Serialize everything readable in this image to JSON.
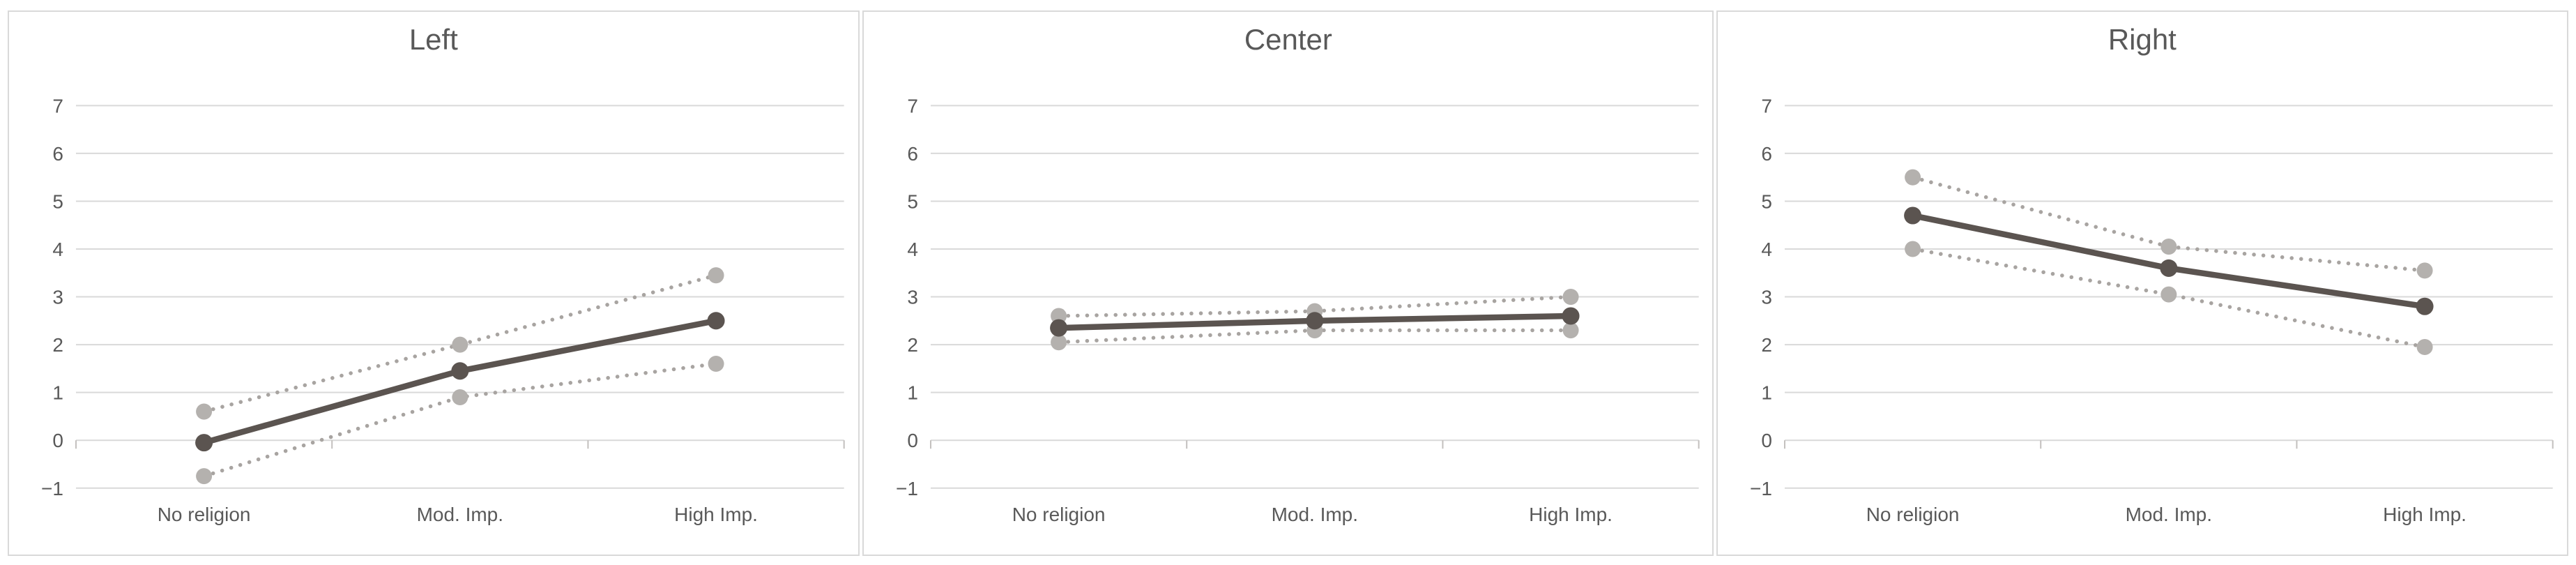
{
  "page": {
    "background": "#ffffff",
    "description": "Three side-by-side line charts with confidence interval bands"
  },
  "colors": {
    "estimate_line": "#5b5450",
    "ci_line": "#a8a4a1",
    "ci_marker": "#b4b1ae",
    "gridline": "#d9d9d9",
    "panel_border": "#d9d9d9",
    "axis_tick": "#c3c0be",
    "title_text": "#595959",
    "tick_text": "#595959"
  },
  "axes": {
    "ytick_labels": [
      "7",
      "6",
      "5",
      "4",
      "3",
      "2",
      "1",
      "0",
      "−1"
    ],
    "ytick_values": [
      7,
      6,
      5,
      4,
      3,
      2,
      1,
      0,
      -1
    ],
    "ylim": [
      -1,
      7
    ],
    "grid": "horizontal-on",
    "legend": "none"
  },
  "chart_data": [
    {
      "type": "line",
      "title": "Left",
      "categories": [
        "No religion",
        "Mod. Imp.",
        "High Imp."
      ],
      "xlabel": "",
      "ylabel": "",
      "ylim": [
        -1,
        7
      ],
      "series": [
        {
          "name": "estimate",
          "style": "solid",
          "values": [
            -0.05,
            1.45,
            2.5
          ]
        },
        {
          "name": "upper-ci",
          "style": "dotted",
          "values": [
            0.6,
            2.0,
            3.45
          ]
        },
        {
          "name": "lower-ci",
          "style": "dotted",
          "values": [
            -0.75,
            0.9,
            1.6
          ]
        }
      ]
    },
    {
      "type": "line",
      "title": "Center",
      "categories": [
        "No religion",
        "Mod. Imp.",
        "High Imp."
      ],
      "xlabel": "",
      "ylabel": "",
      "ylim": [
        -1,
        7
      ],
      "series": [
        {
          "name": "estimate",
          "style": "solid",
          "values": [
            2.35,
            2.5,
            2.6
          ]
        },
        {
          "name": "upper-ci",
          "style": "dotted",
          "values": [
            2.6,
            2.7,
            3.0
          ]
        },
        {
          "name": "lower-ci",
          "style": "dotted",
          "values": [
            2.05,
            2.3,
            2.3
          ]
        }
      ]
    },
    {
      "type": "line",
      "title": "Right",
      "categories": [
        "No religion",
        "Mod. Imp.",
        "High Imp."
      ],
      "xlabel": "",
      "ylabel": "",
      "ylim": [
        -1,
        7
      ],
      "series": [
        {
          "name": "estimate",
          "style": "solid",
          "values": [
            4.7,
            3.6,
            2.8
          ]
        },
        {
          "name": "upper-ci",
          "style": "dotted",
          "values": [
            5.5,
            4.05,
            3.55
          ]
        },
        {
          "name": "lower-ci",
          "style": "dotted",
          "values": [
            4.0,
            3.05,
            1.95
          ]
        }
      ]
    }
  ]
}
